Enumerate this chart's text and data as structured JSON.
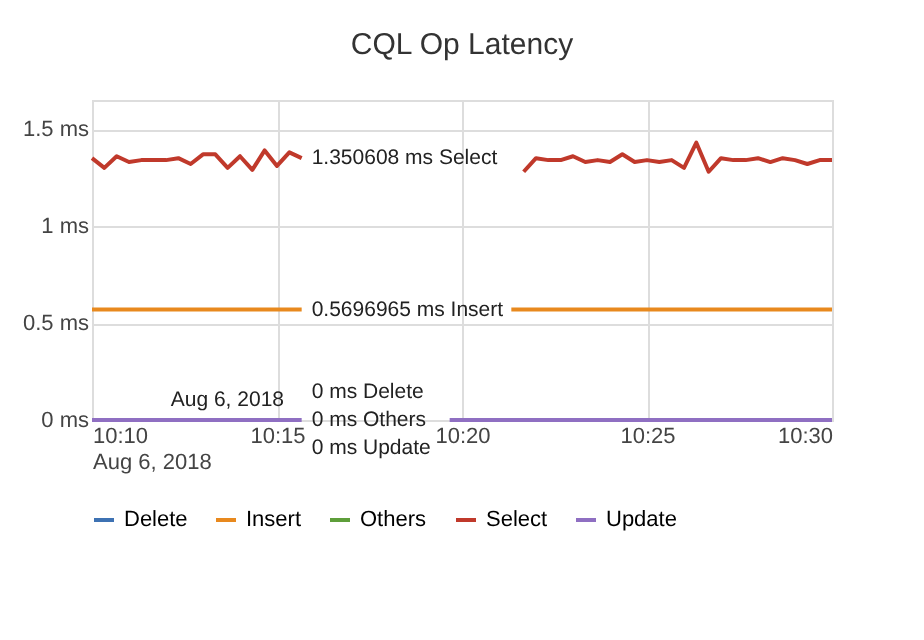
{
  "chart_data": {
    "type": "line",
    "title": "CQL Op Latency",
    "x": [
      "2018-08-06T10:10:00",
      "2018-08-06T10:10:20",
      "2018-08-06T10:10:40",
      "2018-08-06T10:11:00",
      "2018-08-06T10:11:20",
      "2018-08-06T10:11:40",
      "2018-08-06T10:12:00",
      "2018-08-06T10:12:20",
      "2018-08-06T10:12:40",
      "2018-08-06T10:13:00",
      "2018-08-06T10:13:20",
      "2018-08-06T10:13:40",
      "2018-08-06T10:14:00",
      "2018-08-06T10:14:20",
      "2018-08-06T10:14:40",
      "2018-08-06T10:15:00",
      "2018-08-06T10:15:20",
      "2018-08-06T10:15:40",
      "2018-08-06T10:16:00",
      "2018-08-06T10:16:20",
      "2018-08-06T10:16:40",
      "2018-08-06T10:17:00",
      "2018-08-06T10:17:20",
      "2018-08-06T10:17:40",
      "2018-08-06T10:18:00",
      "2018-08-06T10:18:20",
      "2018-08-06T10:18:40",
      "2018-08-06T10:19:00",
      "2018-08-06T10:19:20",
      "2018-08-06T10:19:40",
      "2018-08-06T10:20:00",
      "2018-08-06T10:20:20",
      "2018-08-06T10:20:40",
      "2018-08-06T10:21:00",
      "2018-08-06T10:21:20",
      "2018-08-06T10:21:40",
      "2018-08-06T10:22:00",
      "2018-08-06T10:22:20",
      "2018-08-06T10:22:40",
      "2018-08-06T10:23:00",
      "2018-08-06T10:23:20",
      "2018-08-06T10:23:40",
      "2018-08-06T10:24:00",
      "2018-08-06T10:24:20",
      "2018-08-06T10:24:40",
      "2018-08-06T10:25:00",
      "2018-08-06T10:25:20",
      "2018-08-06T10:25:40",
      "2018-08-06T10:26:00",
      "2018-08-06T10:26:20",
      "2018-08-06T10:26:40",
      "2018-08-06T10:27:00",
      "2018-08-06T10:27:20",
      "2018-08-06T10:27:40",
      "2018-08-06T10:28:00",
      "2018-08-06T10:28:20",
      "2018-08-06T10:28:40",
      "2018-08-06T10:29:00",
      "2018-08-06T10:29:20",
      "2018-08-06T10:29:40",
      "2018-08-06T10:30:00"
    ],
    "series": [
      {
        "name": "Delete",
        "color": "#3e72b3",
        "values": [
          null,
          null,
          null,
          null,
          null,
          null,
          null,
          null,
          null,
          null,
          null,
          null,
          null,
          null,
          null,
          null,
          null,
          null,
          null,
          null,
          null,
          null,
          null,
          null,
          null,
          null,
          null,
          null,
          null,
          null,
          null,
          null,
          null,
          null,
          null,
          null,
          null,
          null,
          null,
          null,
          null,
          null,
          null,
          null,
          null,
          null,
          null,
          null,
          null,
          null,
          null,
          null,
          null,
          null,
          null,
          null,
          null,
          null,
          null,
          null,
          null
        ]
      },
      {
        "name": "Insert",
        "color": "#e8891e",
        "values": [
          0.57,
          0.57,
          0.57,
          0.57,
          0.57,
          0.57,
          0.57,
          0.57,
          0.57,
          0.57,
          0.57,
          0.57,
          0.57,
          0.57,
          0.57,
          0.57,
          0.57,
          0.57,
          null,
          null,
          null,
          null,
          null,
          null,
          null,
          null,
          null,
          null,
          null,
          null,
          null,
          null,
          null,
          null,
          0.57,
          0.57,
          0.57,
          0.57,
          0.57,
          0.57,
          0.57,
          0.57,
          0.57,
          0.57,
          0.57,
          0.57,
          0.57,
          0.57,
          0.57,
          0.57,
          0.57,
          0.57,
          0.57,
          0.57,
          0.57,
          0.57,
          0.57,
          0.57,
          0.57,
          0.57,
          0.57
        ]
      },
      {
        "name": "Others",
        "color": "#5e9e3a",
        "values": [
          null,
          null,
          null,
          null,
          null,
          null,
          null,
          null,
          null,
          null,
          null,
          null,
          null,
          null,
          null,
          null,
          null,
          null,
          null,
          null,
          null,
          null,
          null,
          null,
          null,
          null,
          null,
          null,
          null,
          null,
          null,
          null,
          null,
          null,
          null,
          null,
          null,
          null,
          null,
          null,
          null,
          null,
          null,
          null,
          null,
          null,
          null,
          null,
          null,
          null,
          null,
          null,
          null,
          null,
          null,
          null,
          null,
          null,
          null,
          null,
          null
        ]
      },
      {
        "name": "Select",
        "color": "#c0392b",
        "values": [
          1.35,
          1.3,
          1.36,
          1.33,
          1.34,
          1.34,
          1.34,
          1.35,
          1.32,
          1.37,
          1.37,
          1.3,
          1.36,
          1.29,
          1.39,
          1.31,
          1.38,
          1.35,
          null,
          null,
          null,
          null,
          null,
          null,
          null,
          null,
          null,
          null,
          null,
          null,
          null,
          null,
          null,
          null,
          null,
          1.28,
          1.35,
          1.34,
          1.34,
          1.36,
          1.33,
          1.34,
          1.33,
          1.37,
          1.33,
          1.34,
          1.33,
          1.34,
          1.3,
          1.43,
          1.28,
          1.35,
          1.34,
          1.34,
          1.35,
          1.33,
          1.35,
          1.34,
          1.32,
          1.34,
          1.34
        ]
      },
      {
        "name": "Update",
        "color": "#8f6fc2",
        "values": [
          0,
          0,
          0,
          0,
          0,
          0,
          0,
          0,
          0,
          0,
          0,
          0,
          0,
          0,
          0,
          0,
          0,
          0,
          null,
          null,
          null,
          null,
          null,
          null,
          null,
          null,
          null,
          null,
          null,
          0,
          0,
          0,
          0,
          0,
          0,
          0,
          0,
          0,
          0,
          0,
          0,
          0,
          0,
          0,
          0,
          0,
          0,
          0,
          0,
          0,
          0,
          0,
          0,
          0,
          0,
          0,
          0,
          0,
          0,
          0,
          0
        ]
      }
    ],
    "xlim": [
      "2018-08-06T10:10",
      "2018-08-06T10:30"
    ],
    "xticks": [
      {
        "value": "2018-08-06T10:10",
        "label": "10:10\nAug 6, 2018"
      },
      {
        "value": "2018-08-06T10:15",
        "label": "10:15"
      },
      {
        "value": "2018-08-06T10:20",
        "label": "10:20"
      },
      {
        "value": "2018-08-06T10:25",
        "label": "10:25"
      },
      {
        "value": "2018-08-06T10:30",
        "label": "10:30"
      }
    ],
    "ylim": [
      0,
      1.65
    ],
    "yticks": [
      {
        "value": 0,
        "label": "0 ms"
      },
      {
        "value": 0.5,
        "label": "0.5 ms"
      },
      {
        "value": 1,
        "label": "1 ms"
      },
      {
        "value": 1.5,
        "label": "1.5 ms"
      }
    ],
    "annotations": [
      {
        "text": "1.350608 ms Select",
        "x": "2018-08-06T10:15:40",
        "y": 1.350608
      },
      {
        "text": "0.5696965 ms Insert",
        "x": "2018-08-06T10:15:40",
        "y": 0.5696965
      },
      {
        "text": "0 ms Delete",
        "x": "2018-08-06T10:15:40",
        "y": 0
      },
      {
        "text": "0 ms Others",
        "x": "2018-08-06T10:15:40",
        "y": 0
      },
      {
        "text": "0 ms Update",
        "x": "2018-08-06T10:15:40",
        "y": 0
      },
      "Aug 6, 2018"
    ],
    "grid": true,
    "legend": "bottom",
    "marker": "none",
    "line_style": "solid"
  }
}
